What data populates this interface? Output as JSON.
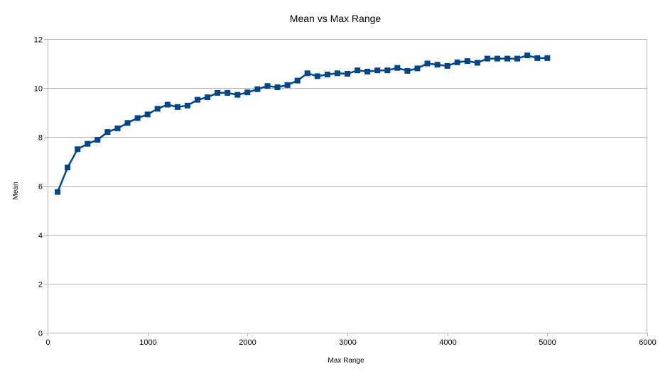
{
  "chart_data": {
    "type": "line",
    "title": "Mean vs Max Range",
    "xlabel": "Max Range",
    "ylabel": "Mean",
    "xlim": [
      0,
      6000
    ],
    "ylim": [
      0,
      12
    ],
    "x_ticks": [
      0,
      1000,
      2000,
      3000,
      4000,
      5000,
      6000
    ],
    "y_ticks": [
      0,
      2,
      4,
      6,
      8,
      10,
      12
    ],
    "grid": "horizontal",
    "legend": "none",
    "series_color": "#004586",
    "marker": "square",
    "series": [
      {
        "x": [
          100,
          200,
          300,
          400,
          500,
          600,
          700,
          800,
          900,
          1000,
          1100,
          1200,
          1300,
          1400,
          1500,
          1600,
          1700,
          1800,
          1900,
          2000,
          2100,
          2200,
          2300,
          2400,
          2500,
          2600,
          2700,
          2800,
          2900,
          3000,
          3100,
          3200,
          3300,
          3400,
          3500,
          3600,
          3700,
          3800,
          3900,
          4000,
          4100,
          4200,
          4300,
          4400,
          4500,
          4600,
          4700,
          4800,
          4900,
          5000
        ],
        "values": [
          5.75,
          6.75,
          7.5,
          7.72,
          7.88,
          8.2,
          8.35,
          8.57,
          8.77,
          8.92,
          9.15,
          9.32,
          9.22,
          9.28,
          9.52,
          9.62,
          9.8,
          9.8,
          9.72,
          9.82,
          9.95,
          10.08,
          10.03,
          10.12,
          10.3,
          10.6,
          10.48,
          10.55,
          10.6,
          10.58,
          10.72,
          10.67,
          10.72,
          10.72,
          10.82,
          10.7,
          10.8,
          11.0,
          10.95,
          10.9,
          11.05,
          11.1,
          11.03,
          11.2,
          11.2,
          11.2,
          11.2,
          11.33,
          11.22,
          11.22
        ]
      }
    ]
  }
}
